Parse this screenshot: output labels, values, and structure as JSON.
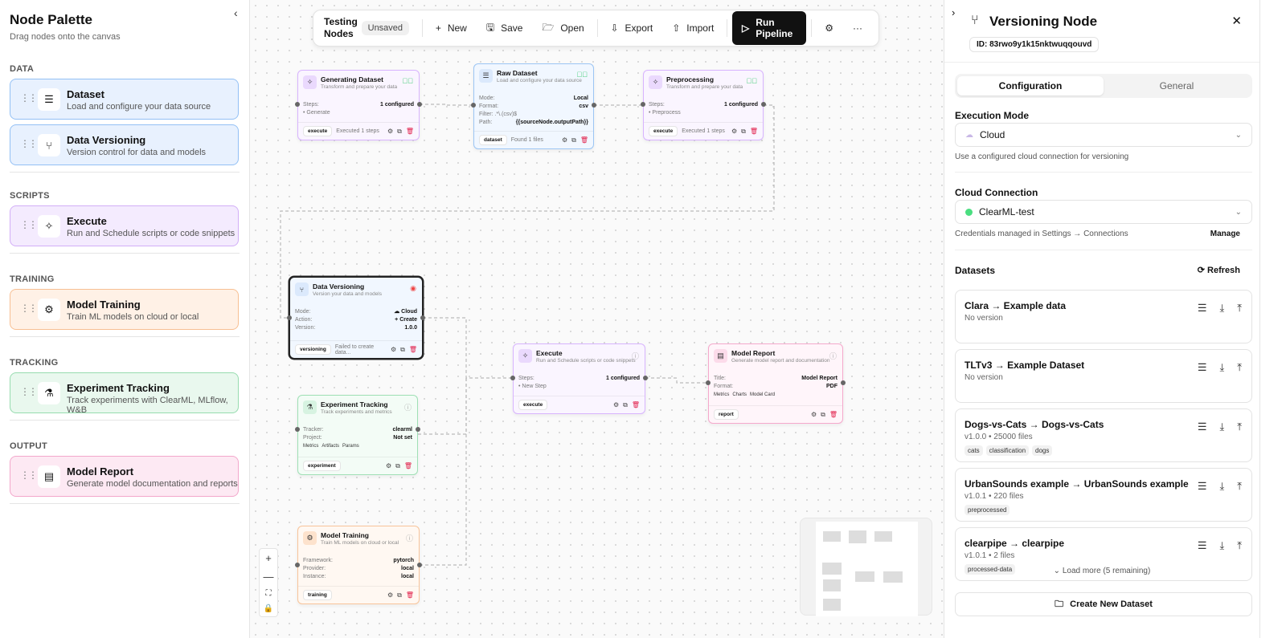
{
  "palette": {
    "title": "Node Palette",
    "subtitle": "Drag nodes onto the canvas",
    "collapse_icon": "chevron-left",
    "sections": [
      {
        "label": "DATA",
        "items": [
          {
            "title": "Dataset",
            "desc": "Load and configure your data source",
            "icon": "database",
            "color": "#e8f1fe",
            "border": "#93c0f5"
          },
          {
            "title": "Data Versioning",
            "desc": "Version control for data and models",
            "icon": "git-branch",
            "color": "#e8f1fe",
            "border": "#93c0f5"
          }
        ]
      },
      {
        "label": "SCRIPTS",
        "items": [
          {
            "title": "Execute",
            "desc": "Run and Schedule scripts or code snippets",
            "icon": "magic-wand",
            "color": "#f4ebfe",
            "border": "#d2aef7"
          }
        ]
      },
      {
        "label": "TRAINING",
        "items": [
          {
            "title": "Model Training",
            "desc": "Train ML models on cloud or local",
            "icon": "cpu",
            "color": "#fff1e6",
            "border": "#f7bf92"
          }
        ]
      },
      {
        "label": "TRACKING",
        "items": [
          {
            "title": "Experiment Tracking",
            "desc": "Track experiments with ClearML, MLflow, W&B",
            "icon": "flask",
            "color": "#e9f8ee",
            "border": "#97dcaf"
          }
        ]
      },
      {
        "label": "OUTPUT",
        "items": [
          {
            "title": "Model Report",
            "desc": "Generate model documentation and reports",
            "icon": "file-text",
            "color": "#fde9f3",
            "border": "#f3a7cb"
          }
        ]
      }
    ]
  },
  "toolbar": {
    "title": "Testing Nodes",
    "status": "Unsaved",
    "new": "New",
    "save": "Save",
    "open": "Open",
    "export": "Export",
    "import": "Import",
    "run": "Run Pipeline"
  },
  "nodes": {
    "gen": {
      "title": "Generating Dataset",
      "desc": "Transform and prepare your data",
      "rows": [
        [
          "Steps:",
          "1 configured"
        ]
      ],
      "bullet": "• Generate",
      "tag": "execute",
      "status": "Executed 1 steps"
    },
    "raw": {
      "title": "Raw Dataset",
      "desc": "Load and configure your data source",
      "rows": [
        [
          "Mode:",
          "Local"
        ],
        [
          "Format:",
          "csv"
        ]
      ],
      "filter": "Filter: .*\\.(csv)$",
      "path": [
        "Path:",
        "{{sourceNode.outputPath}}"
      ],
      "tag": "dataset",
      "status": "Found 1 files"
    },
    "pre": {
      "title": "Preprocessing",
      "desc": "Transform and prepare your data",
      "rows": [
        [
          "Steps:",
          "1 configured"
        ]
      ],
      "bullet": "• Preprocess",
      "tag": "execute",
      "status": "Executed 1 steps"
    },
    "dv": {
      "title": "Data Versioning",
      "desc": "Version your data and models",
      "rows": [
        [
          "Mode:",
          "☁ Cloud"
        ],
        [
          "Action:",
          "+ Create"
        ],
        [
          "Version:",
          "1.0.0"
        ]
      ],
      "tag": "versioning",
      "status": "Failed to create data..."
    },
    "exe": {
      "title": "Execute",
      "desc": "Run and Schedule scripts or code snippets",
      "rows": [
        [
          "Steps:",
          "1 configured"
        ]
      ],
      "bullet": "• New Step",
      "tag": "execute"
    },
    "rep": {
      "title": "Model Report",
      "desc": "Generate model report and documentation",
      "rows": [
        [
          "Title:",
          "Model Report"
        ],
        [
          "Format:",
          "PDF"
        ]
      ],
      "chips": [
        "Metrics",
        "Charts",
        "Model Card"
      ],
      "tag": "report"
    },
    "exp": {
      "title": "Experiment Tracking",
      "desc": "Track experiments and metrics",
      "rows": [
        [
          "Tracker:",
          "clearml"
        ],
        [
          "Project:",
          "Not set"
        ]
      ],
      "chips": [
        "Metrics",
        "Artifacts",
        "Params"
      ],
      "tag": "experiment"
    },
    "tr": {
      "title": "Model Training",
      "desc": "Train ML models on cloud or local",
      "rows": [
        [
          "Framework:",
          "pytorch"
        ],
        [
          "Provider:",
          "local"
        ],
        [
          "Instance:",
          "local"
        ]
      ],
      "tag": "training"
    }
  },
  "zoom_controls": {
    "zoom_in": "+",
    "zoom_out": "—"
  },
  "panel": {
    "title": "Versioning Node",
    "id": "ID: 83rwo9y1k15nktwuqqouvd",
    "tabs": [
      "Configuration",
      "General"
    ],
    "active_tab": "Configuration",
    "execution_mode": {
      "label": "Execution Mode",
      "value": "Cloud",
      "hint": "Use a configured cloud connection for versioning"
    },
    "cloud_connection": {
      "label": "Cloud Connection",
      "value": "ClearML-test",
      "hint": "Credentials managed in Settings → Connections",
      "manage": "Manage",
      "status_color": "#4ade80"
    },
    "datasets": {
      "label": "Datasets",
      "refresh": "Refresh",
      "items": [
        {
          "name": "Clara → Example data",
          "version": "No version",
          "tags": []
        },
        {
          "name": "TLTv3 → Example Dataset",
          "version": "No version",
          "tags": []
        },
        {
          "name": "Dogs-vs-Cats → Dogs-vs-Cats",
          "version": "v1.0.0 • 25000 files",
          "tags": [
            "cats",
            "classification",
            "dogs"
          ]
        },
        {
          "name": "UrbanSounds example → UrbanSounds example",
          "version": "v1.0.1 • 220 files",
          "tags": [
            "preprocessed"
          ]
        },
        {
          "name": "clearpipe → clearpipe",
          "version": "v1.0.1 • 2 files",
          "tags": [
            "processed-data"
          ]
        }
      ],
      "load_more": "Load more (5 remaining)",
      "create": "Create New Dataset"
    }
  }
}
